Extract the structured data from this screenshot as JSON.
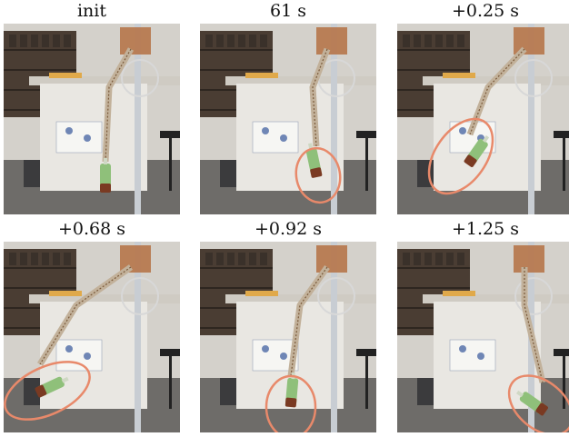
{
  "figure": {
    "panels": [
      {
        "label": "init",
        "highlight": false,
        "bottle": "standing"
      },
      {
        "label": "61 s",
        "highlight": true,
        "bottle": "lifted"
      },
      {
        "label": "+0.25 s",
        "highlight": true,
        "bottle": "tilted"
      },
      {
        "label": "+0.68 s",
        "highlight": true,
        "bottle": "swung"
      },
      {
        "label": "+0.92 s",
        "highlight": true,
        "bottle": "falling"
      },
      {
        "label": "+1.25 s",
        "highlight": true,
        "bottle": "right"
      }
    ],
    "colors": {
      "highlight": "#e8896a",
      "floor": "#6e6c69",
      "shelf": "#4a3d33",
      "cabinet": "#e9e7e2",
      "wall": "#d4d1cb"
    }
  }
}
